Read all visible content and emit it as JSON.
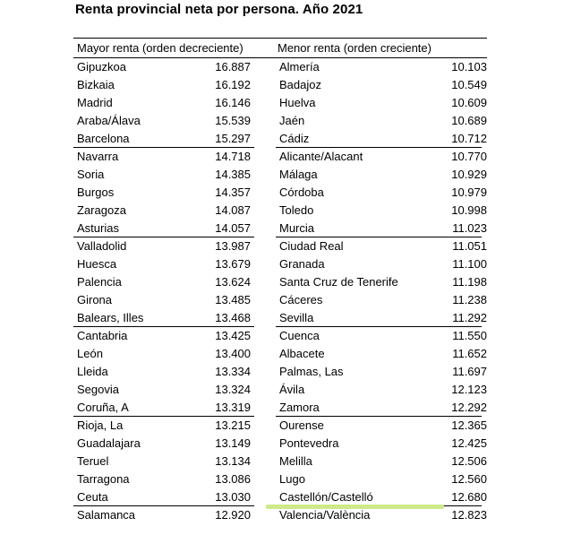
{
  "title": "Renta provincial neta por persona. Año 2021",
  "headers": {
    "left": "Mayor renta (orden decreciente)",
    "right": "Menor renta (orden creciente)"
  },
  "rows": [
    {
      "l_name": "Gipuzkoa",
      "l_val": "16.887",
      "r_name": "Almería",
      "r_val": "10.103"
    },
    {
      "l_name": "Bizkaia",
      "l_val": "16.192",
      "r_name": "Badajoz",
      "r_val": "10.549"
    },
    {
      "l_name": "Madrid",
      "l_val": "16.146",
      "r_name": "Huelva",
      "r_val": "10.609"
    },
    {
      "l_name": "Araba/Álava",
      "l_val": "15.539",
      "r_name": "Jaén",
      "r_val": "10.689"
    },
    {
      "l_name": "Barcelona",
      "l_val": "15.297",
      "r_name": "Cádiz",
      "r_val": "10.712"
    },
    {
      "l_name": "Navarra",
      "l_val": "14.718",
      "r_name": "Alicante/Alacant",
      "r_val": "10.770"
    },
    {
      "l_name": "Soria",
      "l_val": "14.385",
      "r_name": "Málaga",
      "r_val": "10.929"
    },
    {
      "l_name": "Burgos",
      "l_val": "14.357",
      "r_name": "Córdoba",
      "r_val": "10.979"
    },
    {
      "l_name": "Zaragoza",
      "l_val": "14.087",
      "r_name": "Toledo",
      "r_val": "10.998"
    },
    {
      "l_name": "Asturias",
      "l_val": "14.057",
      "r_name": "Murcia",
      "r_val": "11.023"
    },
    {
      "l_name": "Valladolid",
      "l_val": "13.987",
      "r_name": "Ciudad Real",
      "r_val": "11.051"
    },
    {
      "l_name": "Huesca",
      "l_val": "13.679",
      "r_name": "Granada",
      "r_val": "11.100"
    },
    {
      "l_name": "Palencia",
      "l_val": "13.624",
      "r_name": "Santa Cruz de Tenerife",
      "r_val": "11.198"
    },
    {
      "l_name": "Girona",
      "l_val": "13.485",
      "r_name": "Cáceres",
      "r_val": "11.238"
    },
    {
      "l_name": "Balears, Illes",
      "l_val": "13.468",
      "r_name": "Sevilla",
      "r_val": "11.292"
    },
    {
      "l_name": "Cantabria",
      "l_val": "13.425",
      "r_name": "Cuenca",
      "r_val": "11.550"
    },
    {
      "l_name": "León",
      "l_val": "13.400",
      "r_name": "Albacete",
      "r_val": "11.652"
    },
    {
      "l_name": "Lleida",
      "l_val": "13.334",
      "r_name": "Palmas, Las",
      "r_val": "11.697"
    },
    {
      "l_name": "Segovia",
      "l_val": "13.324",
      "r_name": "Ávila",
      "r_val": "12.123"
    },
    {
      "l_name": "Coruña, A",
      "l_val": "13.319",
      "r_name": "Zamora",
      "r_val": "12.292"
    },
    {
      "l_name": "Rioja, La",
      "l_val": "13.215",
      "r_name": "Ourense",
      "r_val": "12.365"
    },
    {
      "l_name": "Guadalajara",
      "l_val": "13.149",
      "r_name": "Pontevedra",
      "r_val": "12.425"
    },
    {
      "l_name": "Teruel",
      "l_val": "13.134",
      "r_name": "Melilla",
      "r_val": "12.506"
    },
    {
      "l_name": "Tarragona",
      "l_val": "13.086",
      "r_name": "Lugo",
      "r_val": "12.560"
    },
    {
      "l_name": "Ceuta",
      "l_val": "13.030",
      "r_name": "Castellón/Castelló",
      "r_val": "12.680"
    },
    {
      "l_name": "Salamanca",
      "l_val": "12.920",
      "r_name": "Valencia/València",
      "r_val": "12.823"
    }
  ],
  "highlight_color": "#cfe98a"
}
